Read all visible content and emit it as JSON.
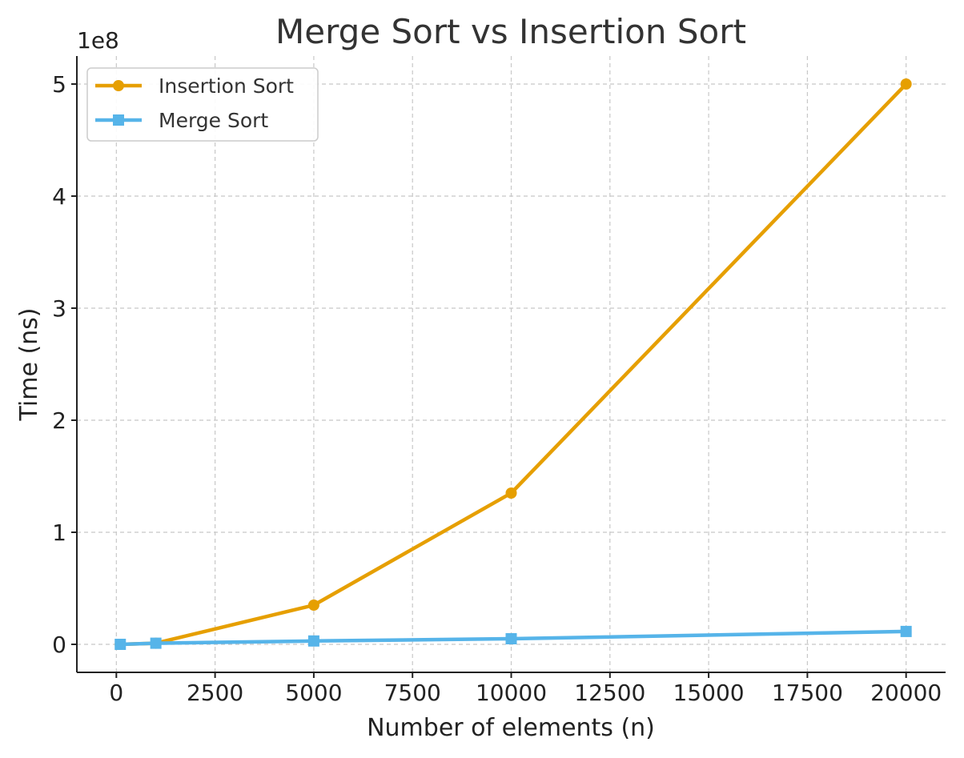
{
  "chart_data": {
    "type": "line",
    "title": "Merge Sort vs Insertion Sort",
    "xlabel": "Number of elements (n)",
    "ylabel": "Time (ns)",
    "y_offset_label": "1e8",
    "xlim": [
      -1000,
      21000
    ],
    "ylim": [
      -0.25,
      5.25
    ],
    "x_ticks": [
      0,
      2500,
      5000,
      7500,
      10000,
      12500,
      15000,
      17500,
      20000
    ],
    "x_tick_labels": [
      "0",
      "2500",
      "5000",
      "7500",
      "10000",
      "12500",
      "15000",
      "17500",
      "20000"
    ],
    "y_ticks": [
      0,
      1,
      2,
      3,
      4,
      5
    ],
    "y_tick_labels": [
      "0",
      "1",
      "2",
      "3",
      "4",
      "5"
    ],
    "grid": true,
    "legend_position": "top-left",
    "series": [
      {
        "name": "Insertion Sort",
        "color": "#E69F00",
        "marker": "circle",
        "x": [
          100,
          1000,
          5000,
          10000,
          20000
        ],
        "values": [
          0.0,
          0.01,
          0.35,
          1.35,
          5.0
        ]
      },
      {
        "name": "Merge Sort",
        "color": "#56B4E9",
        "marker": "square",
        "x": [
          100,
          1000,
          5000,
          10000,
          20000
        ],
        "values": [
          0.0,
          0.01,
          0.03,
          0.05,
          0.115
        ]
      }
    ]
  }
}
